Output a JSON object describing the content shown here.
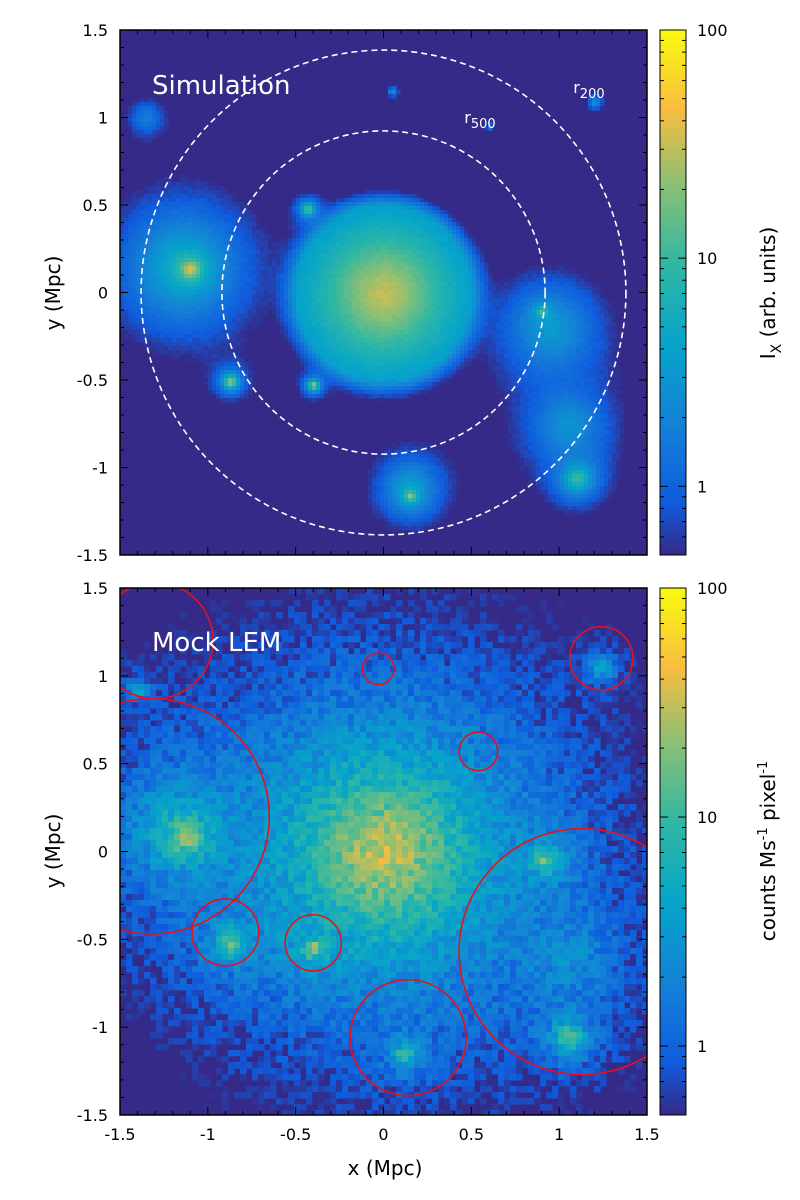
{
  "chart_data": [
    {
      "type": "heatmap",
      "panel_label": "Simulation",
      "xlabel": "",
      "ylabel": "y (Mpc)",
      "xlim": [
        -1.5,
        1.5
      ],
      "ylim": [
        -1.5,
        1.5
      ],
      "x_ticks": [
        -1.5,
        -1,
        -0.5,
        0,
        0.5,
        1,
        1.5
      ],
      "y_ticks": [
        -1.5,
        -1,
        -0.5,
        0,
        0.5,
        1,
        1.5
      ],
      "y_tick_labels": [
        "-1.5",
        "-1",
        "-0.5",
        "0",
        "0.5",
        "1",
        "1.5"
      ],
      "x_tick_labels_shown": false,
      "colorbar": {
        "label_main": "I",
        "label_sub": "X",
        "label_rest": " (arb. units)",
        "scale": "log",
        "range": [
          0.5,
          100
        ],
        "ticks": [
          1,
          10,
          100
        ],
        "tick_labels": [
          "1",
          "10",
          "100"
        ]
      },
      "annotations": [
        {
          "text_main": "r",
          "text_sub": "500",
          "x": 0.46,
          "y": 0.97
        },
        {
          "text_main": "r",
          "text_sub": "200",
          "x": 1.08,
          "y": 1.14
        }
      ],
      "circles_dashed": [
        {
          "name": "r500",
          "cx": 0.0,
          "cy": 0.0,
          "r": 0.92
        },
        {
          "name": "r200",
          "cx": 0.0,
          "cy": 0.0,
          "r": 1.38
        }
      ],
      "sources": [
        {
          "x": 0.0,
          "y": 0.0,
          "peak": 30,
          "sigma": 0.22,
          "extent": 0.5
        },
        {
          "x": -1.15,
          "y": 0.15,
          "peak": 4,
          "sigma": 0.22
        },
        {
          "x": -1.1,
          "y": 0.14,
          "peak": 40,
          "sigma": 0.03
        },
        {
          "x": 0.95,
          "y": -0.2,
          "peak": 3,
          "sigma": 0.18
        },
        {
          "x": 1.05,
          "y": -0.75,
          "peak": 2.5,
          "sigma": 0.15
        },
        {
          "x": 1.1,
          "y": -1.05,
          "peak": 10,
          "sigma": 0.05
        },
        {
          "x": 0.15,
          "y": -1.1,
          "peak": 3,
          "sigma": 0.12
        },
        {
          "x": 0.15,
          "y": -1.15,
          "peak": 20,
          "sigma": 0.02
        },
        {
          "x": -0.87,
          "y": -0.5,
          "peak": 25,
          "sigma": 0.02
        },
        {
          "x": -0.4,
          "y": -0.52,
          "peak": 25,
          "sigma": 0.015
        },
        {
          "x": -0.43,
          "y": 0.48,
          "peak": 15,
          "sigma": 0.02
        },
        {
          "x": -1.35,
          "y": 1.0,
          "peak": 1.5,
          "sigma": 0.08
        },
        {
          "x": 0.6,
          "y": 0.95,
          "peak": 1.5,
          "sigma": 0.02
        },
        {
          "x": 0.05,
          "y": 1.15,
          "peak": 2.5,
          "sigma": 0.02
        },
        {
          "x": 1.2,
          "y": 1.09,
          "peak": 2.5,
          "sigma": 0.03
        },
        {
          "x": 0.9,
          "y": -0.1,
          "peak": 12,
          "sigma": 0.02
        }
      ]
    },
    {
      "type": "heatmap",
      "panel_label": "Mock LEM",
      "xlabel": "x (Mpc)",
      "ylabel": "y (Mpc)",
      "xlim": [
        -1.5,
        1.5
      ],
      "ylim": [
        -1.5,
        1.5
      ],
      "x_ticks": [
        -1.5,
        -1,
        -0.5,
        0,
        0.5,
        1,
        1.5
      ],
      "x_tick_labels": [
        "-1.5",
        "-1",
        "-0.5",
        "0",
        "0.5",
        "1",
        "1.5"
      ],
      "y_ticks": [
        -1.5,
        -1,
        -0.5,
        0,
        0.5,
        1,
        1.5
      ],
      "y_tick_labels": [
        "-1.5",
        "-1",
        "-0.5",
        "0",
        "0.5",
        "1",
        "1.5"
      ],
      "colorbar": {
        "label_main": "counts Ms",
        "label_sup": "-1",
        "label_rest": " pixel",
        "label_sup2": "-1",
        "scale": "log",
        "range": [
          0.5,
          100
        ],
        "ticks": [
          1,
          10,
          100
        ],
        "tick_labels": [
          "1",
          "10",
          "100"
        ]
      },
      "circles_solid": [
        {
          "cx": -1.3,
          "cy": 1.2,
          "r": 0.33
        },
        {
          "cx": -1.32,
          "cy": 0.2,
          "r": 0.67
        },
        {
          "cx": -0.03,
          "cy": 1.04,
          "r": 0.09
        },
        {
          "cx": 0.54,
          "cy": 0.57,
          "r": 0.11
        },
        {
          "cx": 1.24,
          "cy": 1.1,
          "r": 0.18
        },
        {
          "cx": 1.13,
          "cy": -0.57,
          "r": 0.7
        },
        {
          "cx": -0.9,
          "cy": -0.46,
          "r": 0.19
        },
        {
          "cx": -0.4,
          "cy": -0.52,
          "r": 0.16
        },
        {
          "cx": 0.14,
          "cy": -1.06,
          "r": 0.33
        }
      ],
      "sources": [
        {
          "x": 0.0,
          "y": 0.0,
          "peak": 35,
          "sigma": 0.25
        },
        {
          "x": -1.12,
          "y": 0.08,
          "peak": 25,
          "sigma": 0.06
        },
        {
          "x": -1.2,
          "y": 0.15,
          "peak": 3,
          "sigma": 0.2
        },
        {
          "x": 0.92,
          "y": -0.05,
          "peak": 20,
          "sigma": 0.04
        },
        {
          "x": 1.05,
          "y": -0.6,
          "peak": 2,
          "sigma": 0.2
        },
        {
          "x": 1.05,
          "y": -1.05,
          "peak": 15,
          "sigma": 0.05
        },
        {
          "x": 0.12,
          "y": -1.15,
          "peak": 12,
          "sigma": 0.04
        },
        {
          "x": -0.87,
          "y": -0.52,
          "peak": 20,
          "sigma": 0.04
        },
        {
          "x": -0.4,
          "y": -0.55,
          "peak": 30,
          "sigma": 0.03
        },
        {
          "x": 1.24,
          "y": 1.05,
          "peak": 6,
          "sigma": 0.04
        },
        {
          "x": -1.4,
          "y": 0.92,
          "peak": 6,
          "sigma": 0.03
        }
      ]
    }
  ]
}
